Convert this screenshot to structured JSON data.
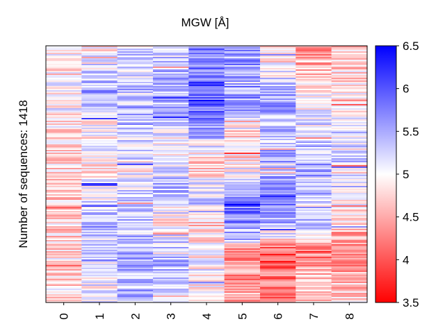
{
  "chart_data": {
    "type": "heatmap",
    "title": "MGW [Å]",
    "ylabel": "Number of sequences: 1418",
    "xlabel": "",
    "categories": [
      "0",
      "1",
      "2",
      "3",
      "4",
      "5",
      "6",
      "7",
      "8"
    ],
    "n_rows": 1418,
    "colorbar": {
      "min": 3.5,
      "max": 6.5,
      "center": 5,
      "ticks": [
        3.5,
        4,
        4.5,
        5,
        5.5,
        6,
        6.5
      ],
      "tick_labels": [
        "3.5",
        "4",
        "4.5",
        "5",
        "5.5",
        "6",
        "6.5"
      ],
      "colormap": "bwr_r",
      "low_color": "#ff0000",
      "mid_color": "#ffffff",
      "high_color": "#0000ff"
    },
    "column_segments": [
      [
        [
          0,
          5.0
        ],
        [
          0.1,
          4.8
        ],
        [
          0.2,
          5.1
        ],
        [
          0.35,
          4.8
        ],
        [
          0.55,
          4.7
        ],
        [
          0.75,
          4.8
        ],
        [
          1,
          4.8
        ]
      ],
      [
        [
          0,
          4.8
        ],
        [
          0.2,
          5.6
        ],
        [
          0.3,
          4.9
        ],
        [
          0.55,
          5.0
        ],
        [
          0.7,
          5.4
        ],
        [
          0.85,
          5.2
        ],
        [
          1,
          5.0
        ]
      ],
      [
        [
          0,
          5.2
        ],
        [
          0.3,
          5.4
        ],
        [
          0.5,
          5.0
        ],
        [
          0.65,
          5.3
        ],
        [
          0.8,
          5.4
        ],
        [
          1,
          5.4
        ]
      ],
      [
        [
          0,
          5.3
        ],
        [
          0.25,
          5.4
        ],
        [
          0.4,
          4.9
        ],
        [
          0.55,
          5.4
        ],
        [
          0.7,
          4.9
        ],
        [
          0.8,
          5.4
        ],
        [
          1,
          5.3
        ]
      ],
      [
        [
          0,
          5.7
        ],
        [
          0.2,
          6.0
        ],
        [
          0.35,
          5.4
        ],
        [
          0.45,
          4.6
        ],
        [
          0.6,
          5.3
        ],
        [
          0.7,
          4.7
        ],
        [
          0.8,
          5.0
        ],
        [
          1,
          5.0
        ]
      ],
      [
        [
          0,
          5.5
        ],
        [
          0.25,
          5.6
        ],
        [
          0.35,
          4.7
        ],
        [
          0.5,
          5.0
        ],
        [
          0.6,
          5.8
        ],
        [
          0.75,
          5.4
        ],
        [
          0.8,
          4.2
        ],
        [
          1,
          4.5
        ]
      ],
      [
        [
          0,
          4.8
        ],
        [
          0.1,
          5.0
        ],
        [
          0.2,
          5.6
        ],
        [
          0.35,
          5.3
        ],
        [
          0.5,
          5.5
        ],
        [
          0.6,
          6.0
        ],
        [
          0.75,
          4.9
        ],
        [
          0.8,
          4.0
        ],
        [
          1,
          4.3
        ]
      ],
      [
        [
          0,
          4.4
        ],
        [
          0.2,
          4.9
        ],
        [
          0.35,
          5.3
        ],
        [
          0.5,
          5.5
        ],
        [
          0.7,
          5.3
        ],
        [
          0.8,
          4.1
        ],
        [
          0.9,
          4.6
        ],
        [
          1,
          4.8
        ]
      ],
      [
        [
          0,
          4.7
        ],
        [
          0.25,
          5.0
        ],
        [
          0.4,
          5.3
        ],
        [
          0.55,
          5.2
        ],
        [
          0.7,
          4.7
        ],
        [
          0.8,
          4.3
        ],
        [
          1,
          4.8
        ]
      ]
    ]
  }
}
